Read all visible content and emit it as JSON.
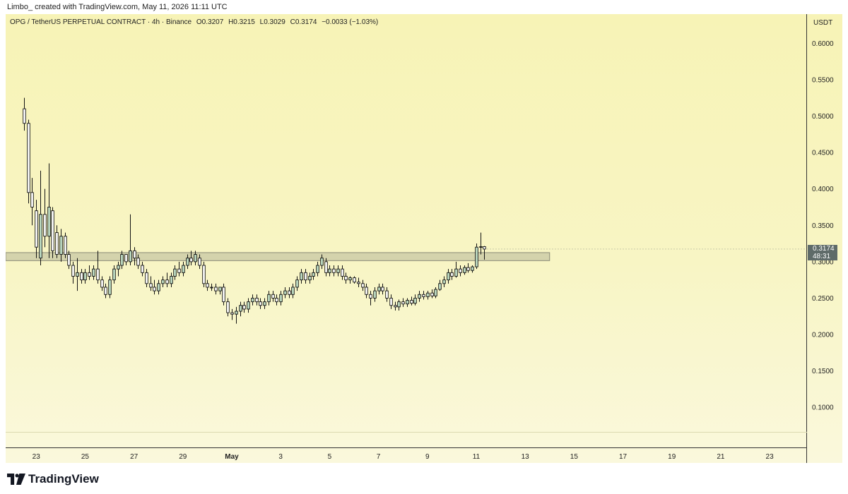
{
  "attribution": "Limbo_ created with TradingView.com, May 11, 2026 11:11 UTC",
  "legend": {
    "symbol": "OPG / TetherUS PERPETUAL CONTRACT · 4h · Binance",
    "open": "O0.3207",
    "high": "H0.3215",
    "low": "L0.3029",
    "close": "C0.3174",
    "change": "−0.0033 (−1.03%)"
  },
  "currency": "USDT",
  "last_price": {
    "value": 0.3174,
    "label": "0.3174",
    "countdown": "48:31"
  },
  "footer": {
    "logo_text": "TradingView"
  },
  "colors": {
    "up_body": "#c4e3c9",
    "down_body": "#ffffff",
    "candle_outline": "#111111",
    "zone_fill": "#c8c7a4",
    "zone_stroke": "#8a8a76",
    "price_tag_bg": "#5f6b69"
  },
  "chart_data": {
    "type": "candlestick",
    "interval": "4h",
    "y_axis": {
      "ylim": [
        0.045,
        0.64
      ],
      "ticks": [
        "0.6000",
        "0.5500",
        "0.5000",
        "0.4500",
        "0.4000",
        "0.3500",
        "0.3000",
        "0.2500",
        "0.2000",
        "0.1500",
        "0.1000"
      ],
      "tick_values": [
        0.6,
        0.55,
        0.5,
        0.45,
        0.4,
        0.35,
        0.3,
        0.25,
        0.2,
        0.15,
        0.1
      ]
    },
    "x_axis": {
      "ticks": [
        "23",
        "25",
        "27",
        "29",
        "May",
        "3",
        "5",
        "7",
        "9",
        "11",
        "13",
        "15",
        "17",
        "19",
        "21",
        "23"
      ],
      "tick_days": [
        0,
        2,
        4,
        6,
        8,
        10,
        12,
        14,
        16,
        18,
        20,
        22,
        24,
        26,
        28,
        30
      ],
      "bold_tick": "May",
      "xlim_days": [
        -1.25,
        31.5
      ]
    },
    "zone": {
      "start_day": -1.25,
      "end_day": 21,
      "low": 0.3015,
      "high": 0.3125
    },
    "candles": [
      {
        "d": -0.5,
        "o": 0.51,
        "h": 0.525,
        "l": 0.48,
        "c": 0.49
      },
      {
        "d": -0.333,
        "o": 0.49,
        "h": 0.495,
        "l": 0.38,
        "c": 0.395
      },
      {
        "d": -0.167,
        "o": 0.395,
        "h": 0.415,
        "l": 0.35,
        "c": 0.375
      },
      {
        "d": 0.0,
        "o": 0.37,
        "h": 0.385,
        "l": 0.305,
        "c": 0.32
      },
      {
        "d": 0.167,
        "o": 0.305,
        "h": 0.425,
        "l": 0.295,
        "c": 0.365
      },
      {
        "d": 0.333,
        "o": 0.365,
        "h": 0.4,
        "l": 0.32,
        "c": 0.335
      },
      {
        "d": 0.5,
        "o": 0.335,
        "h": 0.435,
        "l": 0.305,
        "c": 0.375
      },
      {
        "d": 0.667,
        "o": 0.37,
        "h": 0.375,
        "l": 0.305,
        "c": 0.315
      },
      {
        "d": 0.833,
        "o": 0.34,
        "h": 0.35,
        "l": 0.305,
        "c": 0.31
      },
      {
        "d": 1.0,
        "o": 0.31,
        "h": 0.345,
        "l": 0.3,
        "c": 0.335
      },
      {
        "d": 1.167,
        "o": 0.335,
        "h": 0.34,
        "l": 0.305,
        "c": 0.31
      },
      {
        "d": 1.333,
        "o": 0.31,
        "h": 0.315,
        "l": 0.29,
        "c": 0.295
      },
      {
        "d": 1.5,
        "o": 0.295,
        "h": 0.3,
        "l": 0.27,
        "c": 0.28
      },
      {
        "d": 1.667,
        "o": 0.28,
        "h": 0.305,
        "l": 0.26,
        "c": 0.285
      },
      {
        "d": 1.833,
        "o": 0.285,
        "h": 0.29,
        "l": 0.27,
        "c": 0.275
      },
      {
        "d": 2.0,
        "o": 0.275,
        "h": 0.29,
        "l": 0.27,
        "c": 0.285
      },
      {
        "d": 2.167,
        "o": 0.285,
        "h": 0.295,
        "l": 0.275,
        "c": 0.28
      },
      {
        "d": 2.333,
        "o": 0.28,
        "h": 0.295,
        "l": 0.275,
        "c": 0.29
      },
      {
        "d": 2.5,
        "o": 0.29,
        "h": 0.315,
        "l": 0.27,
        "c": 0.275
      },
      {
        "d": 2.667,
        "o": 0.275,
        "h": 0.28,
        "l": 0.26,
        "c": 0.265
      },
      {
        "d": 2.833,
        "o": 0.265,
        "h": 0.27,
        "l": 0.25,
        "c": 0.255
      },
      {
        "d": 3.0,
        "o": 0.255,
        "h": 0.28,
        "l": 0.25,
        "c": 0.275
      },
      {
        "d": 3.167,
        "o": 0.275,
        "h": 0.295,
        "l": 0.27,
        "c": 0.29
      },
      {
        "d": 3.333,
        "o": 0.29,
        "h": 0.3,
        "l": 0.28,
        "c": 0.295
      },
      {
        "d": 3.5,
        "o": 0.295,
        "h": 0.315,
        "l": 0.29,
        "c": 0.31
      },
      {
        "d": 3.667,
        "o": 0.31,
        "h": 0.31,
        "l": 0.295,
        "c": 0.3
      },
      {
        "d": 3.833,
        "o": 0.3,
        "h": 0.365,
        "l": 0.295,
        "c": 0.315
      },
      {
        "d": 4.0,
        "o": 0.315,
        "h": 0.32,
        "l": 0.295,
        "c": 0.305
      },
      {
        "d": 4.167,
        "o": 0.305,
        "h": 0.31,
        "l": 0.29,
        "c": 0.295
      },
      {
        "d": 4.333,
        "o": 0.295,
        "h": 0.3,
        "l": 0.28,
        "c": 0.285
      },
      {
        "d": 4.5,
        "o": 0.285,
        "h": 0.29,
        "l": 0.265,
        "c": 0.27
      },
      {
        "d": 4.667,
        "o": 0.27,
        "h": 0.28,
        "l": 0.26,
        "c": 0.265
      },
      {
        "d": 4.833,
        "o": 0.265,
        "h": 0.275,
        "l": 0.255,
        "c": 0.26
      },
      {
        "d": 5.0,
        "o": 0.26,
        "h": 0.275,
        "l": 0.255,
        "c": 0.27
      },
      {
        "d": 5.167,
        "o": 0.27,
        "h": 0.28,
        "l": 0.265,
        "c": 0.275
      },
      {
        "d": 5.333,
        "o": 0.275,
        "h": 0.285,
        "l": 0.265,
        "c": 0.27
      },
      {
        "d": 5.5,
        "o": 0.27,
        "h": 0.285,
        "l": 0.265,
        "c": 0.28
      },
      {
        "d": 5.667,
        "o": 0.28,
        "h": 0.295,
        "l": 0.275,
        "c": 0.29
      },
      {
        "d": 5.833,
        "o": 0.29,
        "h": 0.3,
        "l": 0.28,
        "c": 0.285
      },
      {
        "d": 6.0,
        "o": 0.285,
        "h": 0.3,
        "l": 0.28,
        "c": 0.295
      },
      {
        "d": 6.167,
        "o": 0.295,
        "h": 0.31,
        "l": 0.29,
        "c": 0.305
      },
      {
        "d": 6.333,
        "o": 0.305,
        "h": 0.315,
        "l": 0.295,
        "c": 0.3
      },
      {
        "d": 6.5,
        "o": 0.3,
        "h": 0.315,
        "l": 0.295,
        "c": 0.31
      },
      {
        "d": 6.667,
        "o": 0.305,
        "h": 0.31,
        "l": 0.29,
        "c": 0.295
      },
      {
        "d": 6.833,
        "o": 0.295,
        "h": 0.3,
        "l": 0.265,
        "c": 0.27
      },
      {
        "d": 7.0,
        "o": 0.27,
        "h": 0.275,
        "l": 0.26,
        "c": 0.265
      },
      {
        "d": 7.167,
        "o": 0.265,
        "h": 0.27,
        "l": 0.26,
        "c": 0.265
      },
      {
        "d": 7.333,
        "o": 0.265,
        "h": 0.27,
        "l": 0.255,
        "c": 0.26
      },
      {
        "d": 7.5,
        "o": 0.26,
        "h": 0.265,
        "l": 0.255,
        "c": 0.265
      },
      {
        "d": 7.667,
        "o": 0.265,
        "h": 0.27,
        "l": 0.24,
        "c": 0.245
      },
      {
        "d": 7.833,
        "o": 0.245,
        "h": 0.25,
        "l": 0.225,
        "c": 0.23
      },
      {
        "d": 8.0,
        "o": 0.23,
        "h": 0.235,
        "l": 0.22,
        "c": 0.228
      },
      {
        "d": 8.167,
        "o": 0.228,
        "h": 0.238,
        "l": 0.215,
        "c": 0.232
      },
      {
        "d": 8.333,
        "o": 0.232,
        "h": 0.245,
        "l": 0.225,
        "c": 0.24
      },
      {
        "d": 8.5,
        "o": 0.24,
        "h": 0.245,
        "l": 0.23,
        "c": 0.235
      },
      {
        "d": 8.667,
        "o": 0.235,
        "h": 0.25,
        "l": 0.23,
        "c": 0.245
      },
      {
        "d": 8.833,
        "o": 0.245,
        "h": 0.255,
        "l": 0.24,
        "c": 0.25
      },
      {
        "d": 9.0,
        "o": 0.25,
        "h": 0.255,
        "l": 0.24,
        "c": 0.245
      },
      {
        "d": 9.167,
        "o": 0.245,
        "h": 0.25,
        "l": 0.235,
        "c": 0.24
      },
      {
        "d": 9.333,
        "o": 0.24,
        "h": 0.25,
        "l": 0.235,
        "c": 0.245
      },
      {
        "d": 9.5,
        "o": 0.245,
        "h": 0.26,
        "l": 0.24,
        "c": 0.255
      },
      {
        "d": 9.667,
        "o": 0.255,
        "h": 0.26,
        "l": 0.245,
        "c": 0.25
      },
      {
        "d": 9.833,
        "o": 0.25,
        "h": 0.255,
        "l": 0.24,
        "c": 0.245
      },
      {
        "d": 10.0,
        "o": 0.245,
        "h": 0.26,
        "l": 0.24,
        "c": 0.255
      },
      {
        "d": 10.167,
        "o": 0.255,
        "h": 0.265,
        "l": 0.25,
        "c": 0.26
      },
      {
        "d": 10.333,
        "o": 0.26,
        "h": 0.265,
        "l": 0.25,
        "c": 0.255
      },
      {
        "d": 10.5,
        "o": 0.255,
        "h": 0.27,
        "l": 0.25,
        "c": 0.265
      },
      {
        "d": 10.667,
        "o": 0.265,
        "h": 0.28,
        "l": 0.26,
        "c": 0.275
      },
      {
        "d": 10.833,
        "o": 0.275,
        "h": 0.29,
        "l": 0.27,
        "c": 0.285
      },
      {
        "d": 11.0,
        "o": 0.285,
        "h": 0.29,
        "l": 0.27,
        "c": 0.275
      },
      {
        "d": 11.167,
        "o": 0.275,
        "h": 0.285,
        "l": 0.27,
        "c": 0.28
      },
      {
        "d": 11.333,
        "o": 0.28,
        "h": 0.29,
        "l": 0.275,
        "c": 0.285
      },
      {
        "d": 11.5,
        "o": 0.285,
        "h": 0.3,
        "l": 0.28,
        "c": 0.295
      },
      {
        "d": 11.667,
        "o": 0.295,
        "h": 0.31,
        "l": 0.29,
        "c": 0.305
      },
      {
        "d": 11.833,
        "o": 0.3,
        "h": 0.305,
        "l": 0.28,
        "c": 0.285
      },
      {
        "d": 12.0,
        "o": 0.285,
        "h": 0.295,
        "l": 0.28,
        "c": 0.29
      },
      {
        "d": 12.167,
        "o": 0.29,
        "h": 0.295,
        "l": 0.28,
        "c": 0.285
      },
      {
        "d": 12.333,
        "o": 0.285,
        "h": 0.295,
        "l": 0.28,
        "c": 0.29
      },
      {
        "d": 12.5,
        "o": 0.29,
        "h": 0.295,
        "l": 0.275,
        "c": 0.28
      },
      {
        "d": 12.667,
        "o": 0.28,
        "h": 0.285,
        "l": 0.27,
        "c": 0.275
      },
      {
        "d": 12.833,
        "o": 0.275,
        "h": 0.28,
        "l": 0.27,
        "c": 0.278
      },
      {
        "d": 13.0,
        "o": 0.278,
        "h": 0.28,
        "l": 0.27,
        "c": 0.272
      },
      {
        "d": 13.167,
        "o": 0.272,
        "h": 0.278,
        "l": 0.265,
        "c": 0.27
      },
      {
        "d": 13.333,
        "o": 0.27,
        "h": 0.275,
        "l": 0.26,
        "c": 0.265
      },
      {
        "d": 13.5,
        "o": 0.265,
        "h": 0.27,
        "l": 0.25,
        "c": 0.255
      },
      {
        "d": 13.667,
        "o": 0.255,
        "h": 0.26,
        "l": 0.24,
        "c": 0.25
      },
      {
        "d": 13.833,
        "o": 0.25,
        "h": 0.265,
        "l": 0.245,
        "c": 0.26
      },
      {
        "d": 14.0,
        "o": 0.26,
        "h": 0.27,
        "l": 0.255,
        "c": 0.265
      },
      {
        "d": 14.167,
        "o": 0.265,
        "h": 0.27,
        "l": 0.255,
        "c": 0.26
      },
      {
        "d": 14.333,
        "o": 0.26,
        "h": 0.265,
        "l": 0.245,
        "c": 0.25
      },
      {
        "d": 14.5,
        "o": 0.25,
        "h": 0.255,
        "l": 0.235,
        "c": 0.24
      },
      {
        "d": 14.667,
        "o": 0.24,
        "h": 0.245,
        "l": 0.233,
        "c": 0.238
      },
      {
        "d": 14.833,
        "o": 0.238,
        "h": 0.248,
        "l": 0.233,
        "c": 0.245
      },
      {
        "d": 15.0,
        "o": 0.245,
        "h": 0.25,
        "l": 0.238,
        "c": 0.242
      },
      {
        "d": 15.167,
        "o": 0.242,
        "h": 0.25,
        "l": 0.238,
        "c": 0.247
      },
      {
        "d": 15.333,
        "o": 0.247,
        "h": 0.252,
        "l": 0.24,
        "c": 0.243
      },
      {
        "d": 15.5,
        "o": 0.243,
        "h": 0.255,
        "l": 0.24,
        "c": 0.25
      },
      {
        "d": 15.667,
        "o": 0.25,
        "h": 0.26,
        "l": 0.245,
        "c": 0.255
      },
      {
        "d": 15.833,
        "o": 0.255,
        "h": 0.26,
        "l": 0.248,
        "c": 0.252
      },
      {
        "d": 16.0,
        "o": 0.252,
        "h": 0.26,
        "l": 0.248,
        "c": 0.257
      },
      {
        "d": 16.167,
        "o": 0.257,
        "h": 0.262,
        "l": 0.25,
        "c": 0.253
      },
      {
        "d": 16.333,
        "o": 0.253,
        "h": 0.265,
        "l": 0.25,
        "c": 0.262
      },
      {
        "d": 16.5,
        "o": 0.262,
        "h": 0.275,
        "l": 0.26,
        "c": 0.27
      },
      {
        "d": 16.667,
        "o": 0.27,
        "h": 0.28,
        "l": 0.265,
        "c": 0.275
      },
      {
        "d": 16.833,
        "o": 0.275,
        "h": 0.29,
        "l": 0.27,
        "c": 0.285
      },
      {
        "d": 17.0,
        "o": 0.285,
        "h": 0.29,
        "l": 0.275,
        "c": 0.28
      },
      {
        "d": 17.167,
        "o": 0.28,
        "h": 0.3,
        "l": 0.278,
        "c": 0.29
      },
      {
        "d": 17.333,
        "o": 0.29,
        "h": 0.295,
        "l": 0.28,
        "c": 0.285
      },
      {
        "d": 17.5,
        "o": 0.285,
        "h": 0.295,
        "l": 0.282,
        "c": 0.292
      },
      {
        "d": 17.667,
        "o": 0.292,
        "h": 0.298,
        "l": 0.285,
        "c": 0.288
      },
      {
        "d": 17.833,
        "o": 0.288,
        "h": 0.295,
        "l": 0.285,
        "c": 0.293
      },
      {
        "d": 18.0,
        "o": 0.293,
        "h": 0.325,
        "l": 0.29,
        "c": 0.32
      },
      {
        "d": 18.167,
        "o": 0.32,
        "h": 0.34,
        "l": 0.31,
        "c": 0.3207
      },
      {
        "d": 18.333,
        "o": 0.3207,
        "h": 0.3215,
        "l": 0.3029,
        "c": 0.3174
      }
    ]
  }
}
